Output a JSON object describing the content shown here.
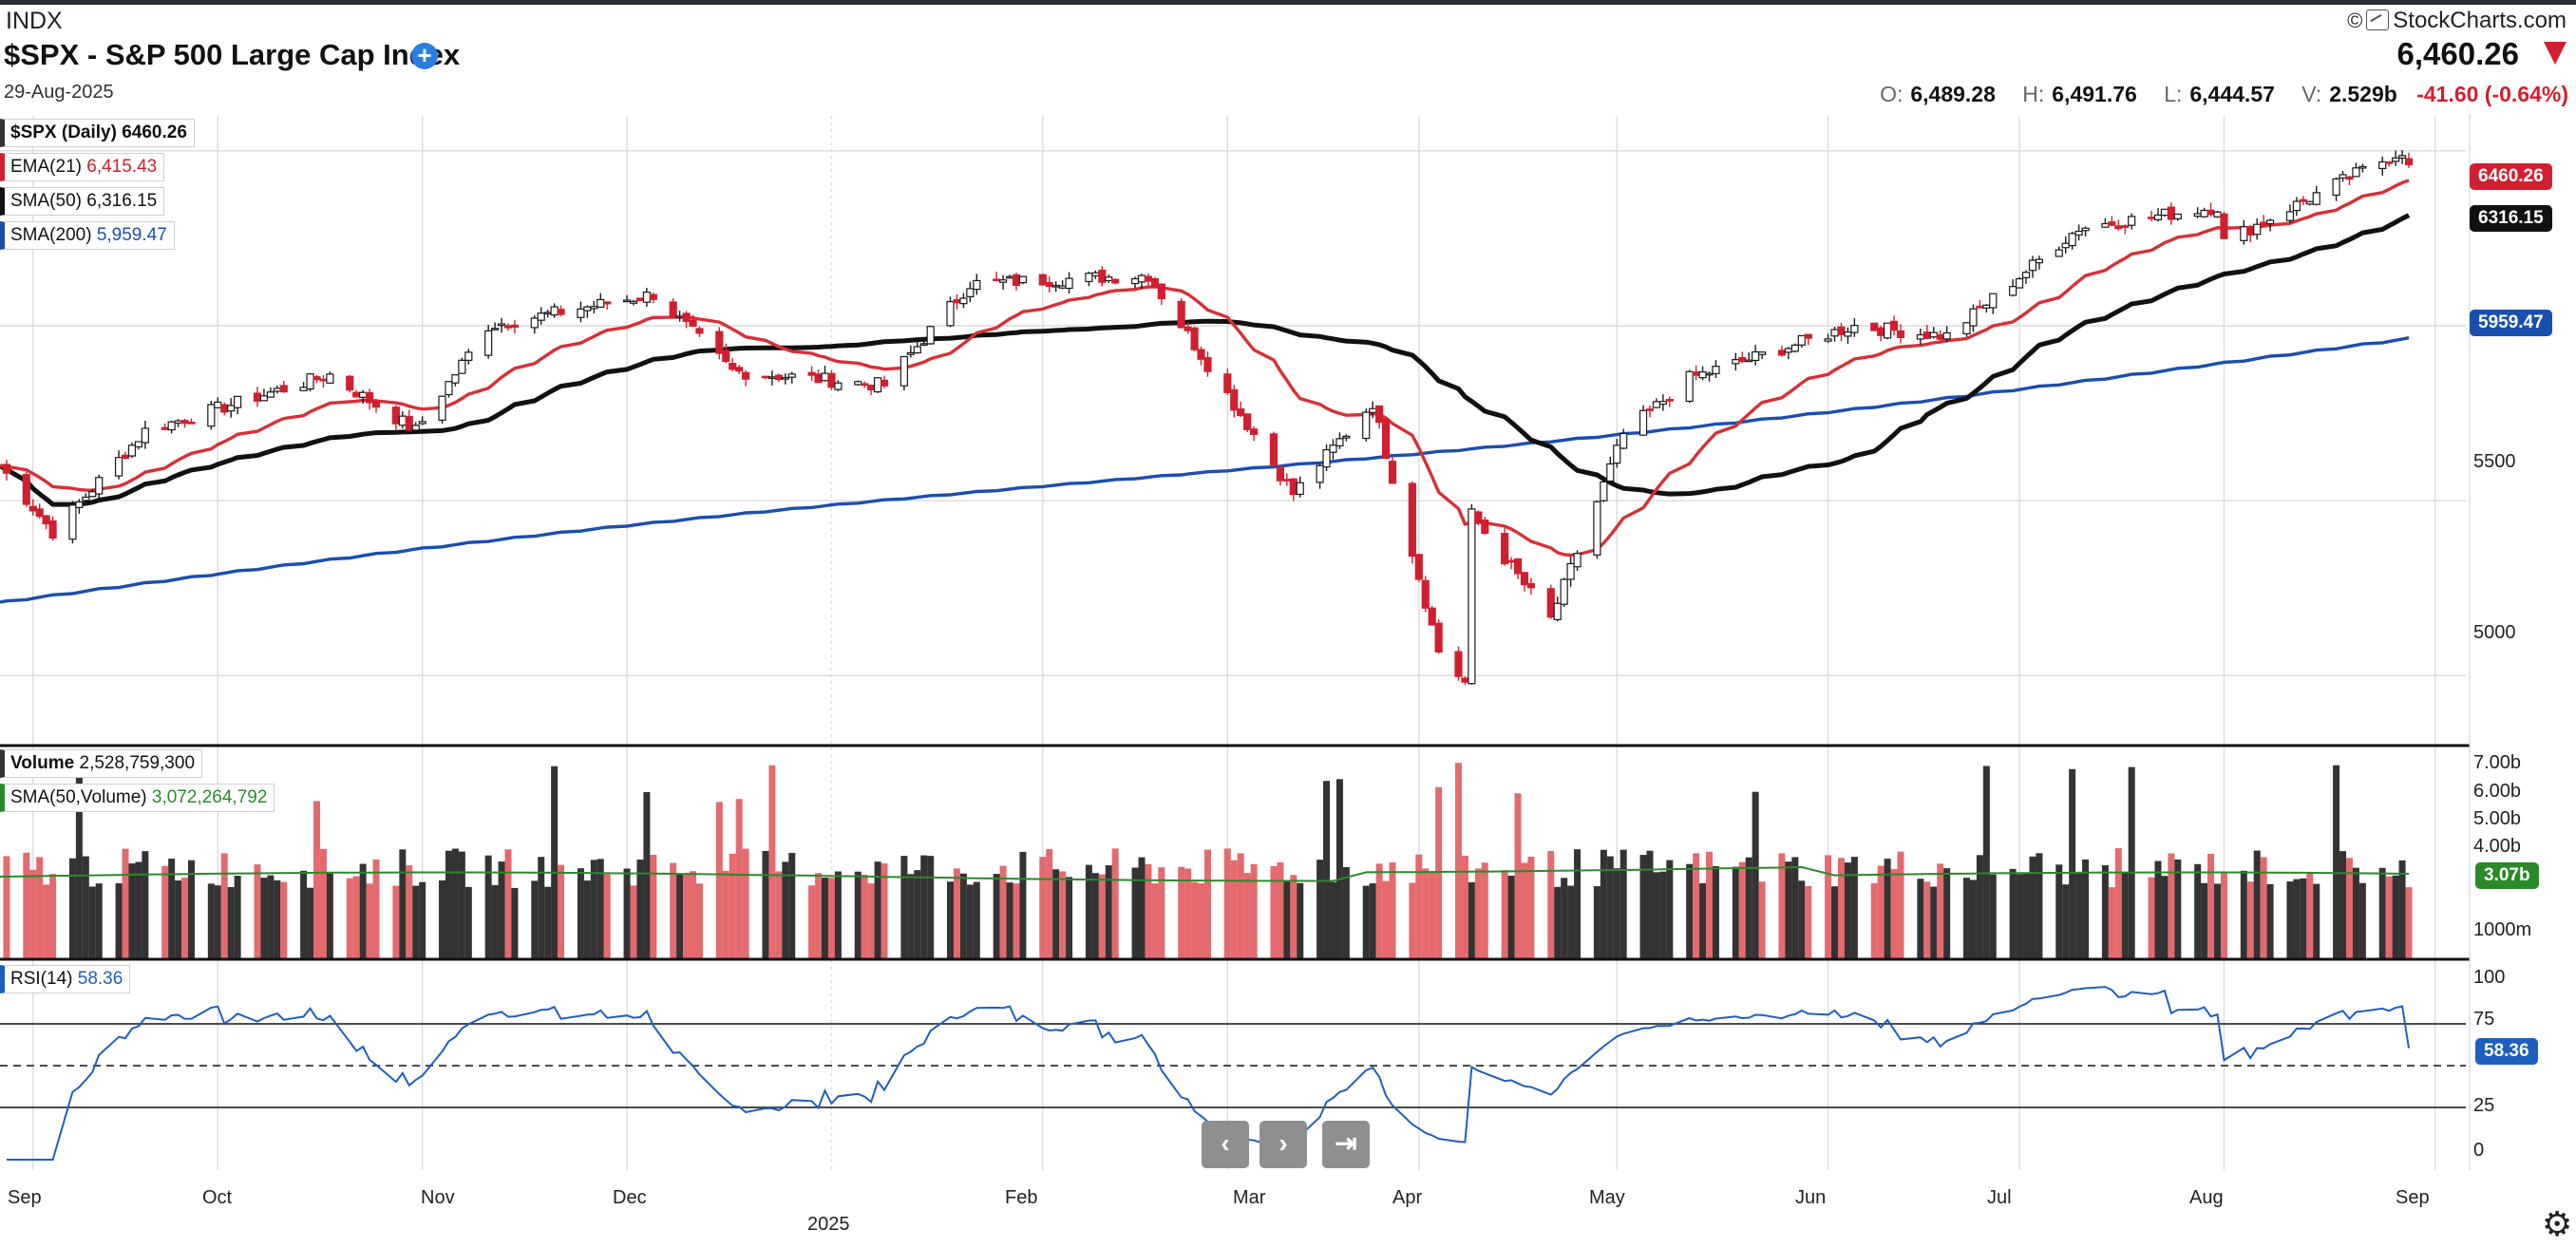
{
  "header": {
    "ticker_type": "INDX",
    "title": "$SPX - S&P 500 Large Cap Index",
    "date": "29-Aug-2025",
    "brand": "StockCharts.com",
    "last": "6,460.26",
    "ohlcv": {
      "o_label": "O:",
      "o": "6,489.28",
      "h_label": "H:",
      "h": "6,491.76",
      "l_label": "L:",
      "l": "6,444.57",
      "v_label": "V:",
      "v": "2.529b"
    },
    "change": "-41.60 (-0.64%)"
  },
  "legends": {
    "price": "$SPX (Daily) 6460.26",
    "ema_label": "EMA(21)",
    "ema_value": "6,415.43",
    "sma50_label": "SMA(50)",
    "sma50_value": "6,316.15",
    "sma200_label": "SMA(200)",
    "sma200_value": "5,959.47",
    "volume_label": "Volume",
    "volume_value": "2,528,759,300",
    "volsma_label": "SMA(50,Volume)",
    "volsma_value": "3,072,264,792",
    "rsi_label": "RSI(14)",
    "rsi_value": "58.36"
  },
  "price_tags": {
    "last": "6460.26",
    "sma50": "6316.15",
    "sma200": "5959.47",
    "vol_sma": "3.07b",
    "rsi": "58.36"
  },
  "colors": {
    "up": "#1a1a1a",
    "down": "#d0202f",
    "ema": "#d83035",
    "sma50": "#111111",
    "sma200": "#1a4fae",
    "vol_sma": "#2a8a2a",
    "rsi_line": "#1d5fbf"
  },
  "axes": {
    "price_ticks": [
      "5000",
      "5500"
    ],
    "volume_ticks": [
      "7.00b",
      "6.00b",
      "5.00b",
      "4.00b",
      "1000m"
    ],
    "rsi_ticks": [
      "100",
      "75",
      "25",
      "0"
    ],
    "months": [
      "Sep",
      "Oct",
      "Nov",
      "Dec",
      "Feb",
      "Mar",
      "Apr",
      "May",
      "Jun",
      "Jul",
      "Aug",
      "Sep"
    ],
    "year": "2025"
  },
  "nav": {
    "prev": "‹",
    "next": "›",
    "end": "⇥",
    "settings": "gear-icon"
  },
  "chart_data": {
    "type": "candlestick",
    "title": "$SPX - S&P 500 Large Cap Index",
    "period": "Daily",
    "x_range": [
      "2024-08-29",
      "2025-08-29"
    ],
    "ylim": [
      4800,
      6600
    ],
    "anchors": [
      [
        "2024-08-29",
        5600
      ],
      [
        "2024-09-06",
        5410
      ],
      [
        "2024-09-20",
        5700
      ],
      [
        "2024-10-18",
        5860
      ],
      [
        "2024-10-31",
        5700
      ],
      [
        "2024-11-11",
        6000
      ],
      [
        "2024-12-06",
        6090
      ],
      [
        "2024-12-18",
        5870
      ],
      [
        "2025-01-10",
        5830
      ],
      [
        "2025-01-23",
        6120
      ],
      [
        "2025-02-19",
        6145
      ],
      [
        "2025-03-13",
        5520
      ],
      [
        "2025-03-25",
        5780
      ],
      [
        "2025-04-04",
        5070
      ],
      [
        "2025-04-08",
        4980
      ],
      [
        "2025-04-09",
        5460
      ],
      [
        "2025-04-21",
        5160
      ],
      [
        "2025-05-02",
        5690
      ],
      [
        "2025-05-12",
        5850
      ],
      [
        "2025-06-06",
        6000
      ],
      [
        "2025-06-20",
        5970
      ],
      [
        "2025-07-10",
        6280
      ],
      [
        "2025-07-31",
        6340
      ],
      [
        "2025-08-01",
        6240
      ],
      [
        "2025-08-28",
        6501
      ],
      [
        "2025-08-29",
        6460.26
      ]
    ],
    "overlays": [
      {
        "name": "EMA(21)",
        "last": 6415.43
      },
      {
        "name": "SMA(50)",
        "last": 6316.15
      },
      {
        "name": "SMA(200)",
        "last": 5959.47
      }
    ],
    "volume": {
      "last": 2528759300,
      "sma50": 3072264792,
      "ylim_b": [
        0,
        7.4
      ]
    },
    "rsi": {
      "period": 14,
      "last": 58.36,
      "levels": [
        70,
        50,
        30
      ]
    }
  }
}
